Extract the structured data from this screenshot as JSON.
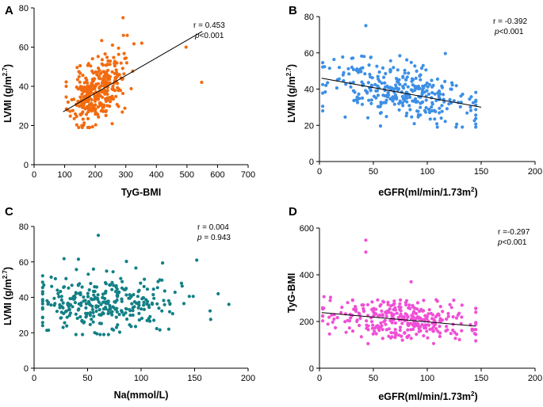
{
  "chart_data": [
    {
      "type": "scatter",
      "panel": "A",
      "color": "#f26b0f",
      "xlabel": "TyG-BMI",
      "ylabel": "LVMI (g/m²·⁷)",
      "ylabel_main": "LVMI (g/m",
      "ylabel_sup": "2.7",
      "ylabel_end": ")",
      "xlim": [
        0,
        700
      ],
      "ylim": [
        0,
        80
      ],
      "xticks": [
        0,
        100,
        200,
        300,
        400,
        500,
        600,
        700
      ],
      "yticks": [
        0,
        20,
        40,
        60,
        80
      ],
      "stat_lines": [
        "r = 0.453",
        "p <0.001"
      ],
      "stat_r": "r = 0.453",
      "stat_p_symbol": "p",
      "stat_p_value": "<0.001",
      "fit": [
        [
          95,
          27
        ],
        [
          550,
          68
        ]
      ],
      "outliers": [
        [
          291,
          75
        ],
        [
          497,
          60
        ],
        [
          548,
          42
        ],
        [
          352,
          62
        ]
      ],
      "cloud": {
        "n": 330,
        "seed": 11,
        "x_mean": 205,
        "x_sd": 42,
        "x_min": 105,
        "x_max": 375,
        "y_mean": 37,
        "y_sd": 8,
        "y_min": 19,
        "y_max": 66,
        "slope": 0.085
      }
    },
    {
      "type": "scatter",
      "panel": "B",
      "color": "#3d8fe6",
      "xlabel": "eGFR(ml/min/1.73m²)",
      "xlabel_main": "eGFR(ml/min/1.73m",
      "xlabel_sup": "2",
      "xlabel_end": ")",
      "ylabel": "LVMI (g/m²·⁷)",
      "ylabel_main": "LVMI (g/m",
      "ylabel_sup": "2.7",
      "ylabel_end": ")",
      "xlim": [
        0,
        200
      ],
      "ylim": [
        0,
        80
      ],
      "xticks": [
        0,
        50,
        100,
        150,
        200
      ],
      "yticks": [
        0,
        20,
        40,
        60,
        80
      ],
      "stat_r": "r = -0.392",
      "stat_p_symbol": "p",
      "stat_p_value": "<0.001",
      "fit": [
        [
          2,
          46
        ],
        [
          150,
          30
        ]
      ],
      "outliers": [
        [
          43,
          75
        ],
        [
          6,
          42
        ]
      ],
      "cloud": {
        "n": 320,
        "seed": 23,
        "x_mean": 75,
        "x_sd": 33,
        "x_min": 3,
        "x_max": 145,
        "y_mean": 38,
        "y_sd": 8,
        "y_min": 19,
        "y_max": 66,
        "slope": -0.11
      }
    },
    {
      "type": "scatter",
      "panel": "C",
      "color": "#138086",
      "xlabel": "Na(mmol/L)",
      "ylabel": "LVMI (g/m²·⁷)",
      "ylabel_main": "LVMI (g/m",
      "ylabel_sup": "2.7",
      "ylabel_end": ")",
      "xlim": [
        0,
        200
      ],
      "ylim": [
        0,
        80
      ],
      "xticks": [
        0,
        50,
        100,
        150,
        200
      ],
      "yticks": [
        0,
        20,
        40,
        60,
        80
      ],
      "stat_r": "r  = 0.004",
      "stat_p_symbol": "p",
      "stat_p_value": " = 0.943",
      "fit": null,
      "outliers": [
        [
          60,
          75
        ],
        [
          182,
          36
        ],
        [
          172,
          42
        ],
        [
          152,
          61
        ]
      ],
      "cloud": {
        "n": 320,
        "seed": 37,
        "x_mean": 68,
        "x_sd": 34,
        "x_min": 8,
        "x_max": 165,
        "y_mean": 37,
        "y_sd": 8,
        "y_min": 19,
        "y_max": 64,
        "slope": 0
      }
    },
    {
      "type": "scatter",
      "panel": "D",
      "color": "#ef4fd6",
      "xlabel": "eGFR(ml/min/1.73m²)",
      "xlabel_main": "eGFR(ml/min/1.73m",
      "xlabel_sup": "2",
      "xlabel_end": ")",
      "ylabel": "TyG-BMI",
      "xlim": [
        0,
        200
      ],
      "ylim": [
        0,
        600
      ],
      "xticks": [
        0,
        50,
        100,
        150,
        200
      ],
      "yticks": [
        0,
        200,
        400,
        600
      ],
      "stat_r": "r =-0.297",
      "stat_p_symbol": "p",
      "stat_p_value": "<0.001",
      "fit": [
        [
          2,
          238
        ],
        [
          145,
          180
        ]
      ],
      "outliers": [
        [
          43,
          548
        ],
        [
          43,
          497
        ],
        [
          85,
          370
        ]
      ],
      "cloud": {
        "n": 320,
        "seed": 53,
        "x_mean": 75,
        "x_sd": 33,
        "x_min": 3,
        "x_max": 145,
        "y_mean": 210,
        "y_sd": 42,
        "y_min": 105,
        "y_max": 340,
        "slope": -0.42
      }
    }
  ]
}
